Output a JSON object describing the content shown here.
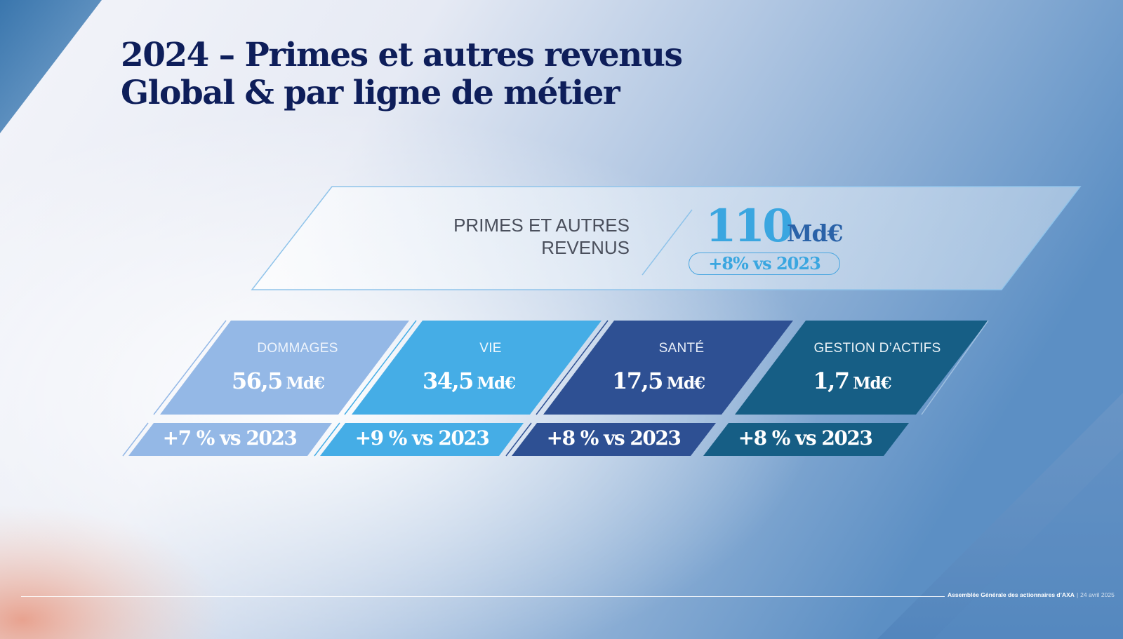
{
  "slide": {
    "title_line1": "2024 – Primes et autres revenus",
    "title_line2": "Global & par ligne de métier"
  },
  "total": {
    "label_line1": "PRIMES ET AUTRES",
    "label_line2": "REVENUS",
    "value": "110",
    "unit": "Md€",
    "growth": "+8% vs 2023"
  },
  "segments": [
    {
      "label": "DOMMAGES",
      "value": "56,5",
      "unit": "Md€",
      "growth": "+7 % vs 2023",
      "color": "#94b8e6",
      "label_color": "#eef4fc"
    },
    {
      "label": "VIE",
      "value": "34,5",
      "unit": "Md€",
      "growth": "+9 % vs 2023",
      "color": "#45ade6",
      "label_color": "#f1f8fd"
    },
    {
      "label": "SANTÉ",
      "value": "17,5",
      "unit": "Md€",
      "growth": "+8 % vs 2023",
      "color": "#2e5093",
      "label_color": "#e8eef8"
    },
    {
      "label": "GESTION D’ACTIFS",
      "value": "1,7",
      "unit": "Md€",
      "growth": "+8 % vs 2023",
      "color": "#165e85",
      "label_color": "#eaf2f7"
    }
  ],
  "footer": {
    "org": "Assemblée Générale des actionnaires d’AXA",
    "separator": "|",
    "date": "24 avril 2025"
  },
  "colors": {
    "title": "#0e1e5a",
    "accent": "#3aa6e0",
    "unit_dark": "#2a62a8"
  }
}
